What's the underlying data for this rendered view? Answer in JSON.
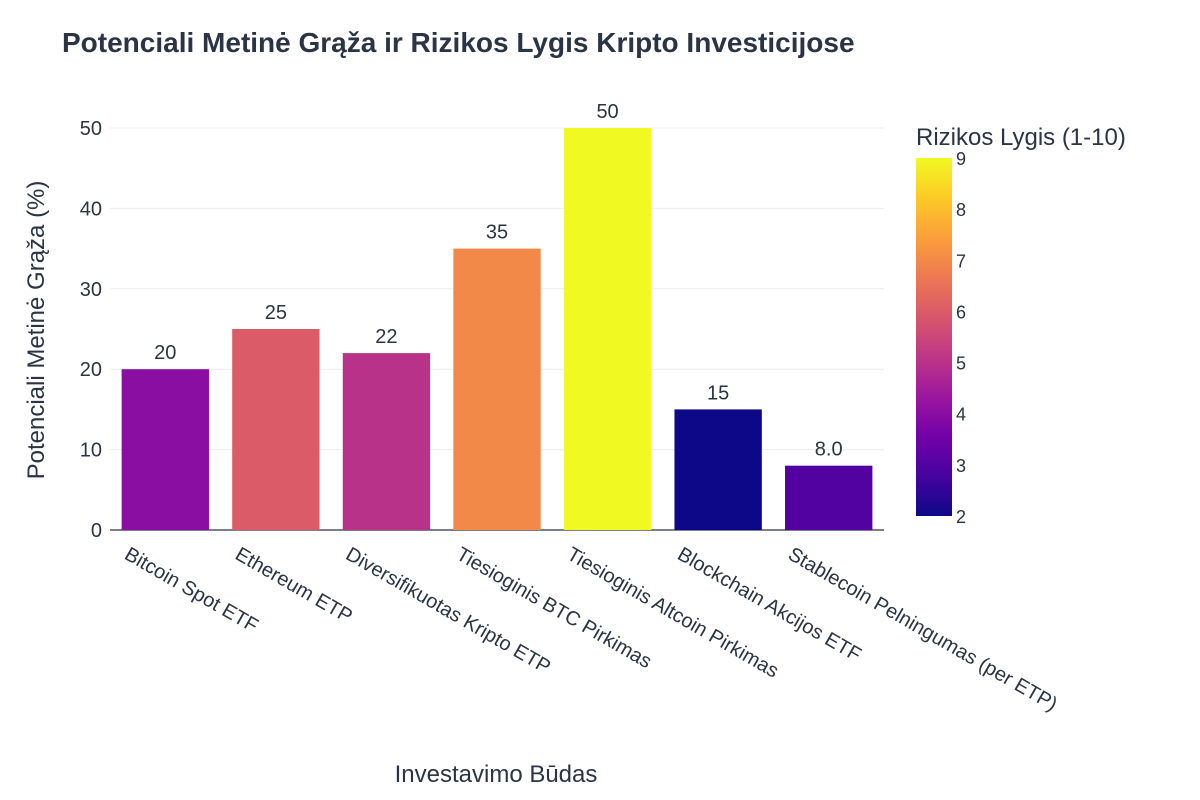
{
  "chart_data": {
    "type": "bar",
    "title": "Potenciali Metinė Grąža ir Rizikos Lygis Kripto Investicijose",
    "xlabel": "Investavimo Būdas",
    "ylabel": "Potenciali Metinė Grąža (%)",
    "ylim": [
      0,
      50
    ],
    "yticks": [
      0,
      10,
      20,
      30,
      40,
      50
    ],
    "grid": true,
    "categories": [
      "Bitcoin Spot ETF",
      "Ethereum ETP",
      "Diversifikuotas Kripto ETP",
      "Tiesioginis BTC Pirkimas",
      "Tiesioginis Altcoin Pirkimas",
      "Blockchain Akcijos ETF",
      "Stablecoin Pelningumas (per ETP)"
    ],
    "values": [
      20,
      25,
      22,
      35,
      50,
      15,
      8
    ],
    "value_labels": [
      "20",
      "25",
      "22",
      "35",
      "50",
      "15",
      "8.0"
    ],
    "risk_levels": [
      4,
      6,
      5,
      7,
      9,
      2,
      3
    ],
    "colorbar": {
      "title": "Rizikos Lygis (1-10)",
      "range": [
        2,
        9
      ],
      "ticks": [
        2,
        3,
        4,
        5,
        6,
        7,
        8,
        9
      ],
      "colorscale": [
        "#0d0887",
        "#46039f",
        "#7201a8",
        "#9c179e",
        "#bd3786",
        "#d8576b",
        "#ed7953",
        "#fb9f3a",
        "#fdca26",
        "#f0f921"
      ]
    }
  }
}
